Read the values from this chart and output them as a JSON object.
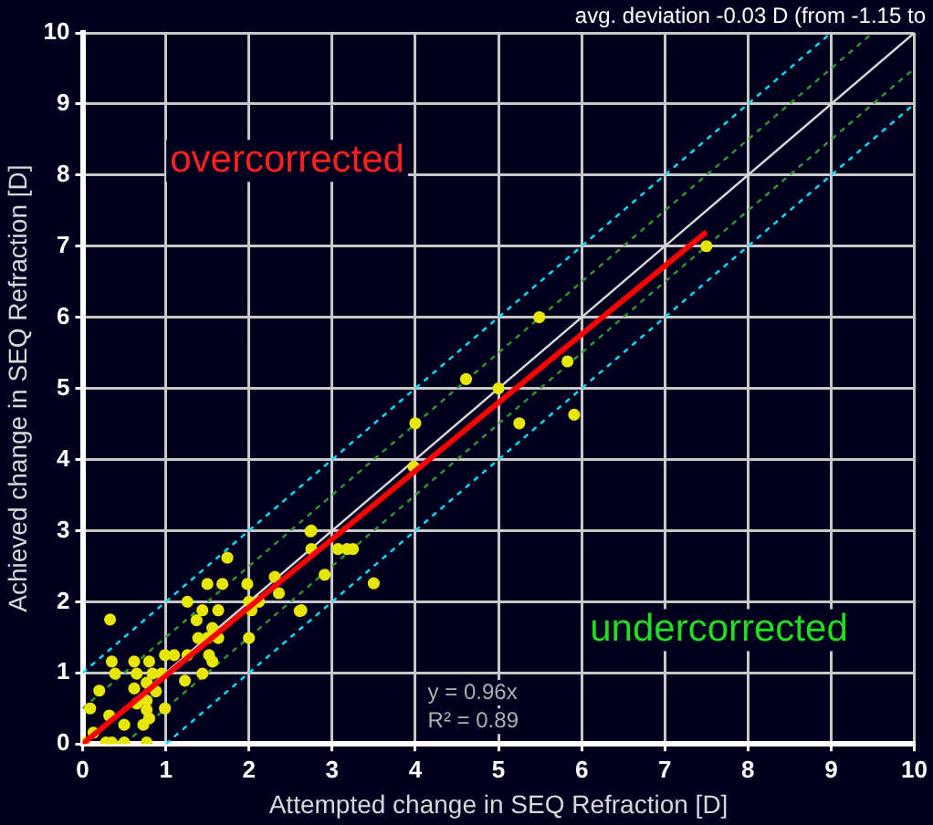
{
  "chart_data": {
    "type": "scatter",
    "xlabel": "Attempted change in SEQ Refraction [D]",
    "ylabel": "Achieved change in SEQ Refraction [D]",
    "annotations": [
      "avg. deviation -0.03 D (from -1.15 to",
      "overcorrected",
      "undercorrected",
      "y = 0.96x",
      "R² = 0.89"
    ],
    "xlim": [
      0,
      10
    ],
    "ylim": [
      0,
      10
    ],
    "xticks": [
      0,
      1,
      2,
      3,
      4,
      5,
      6,
      7,
      8,
      9,
      10
    ],
    "yticks": [
      0,
      1,
      2,
      3,
      4,
      5,
      6,
      7,
      8,
      9,
      10
    ],
    "grid": true,
    "legend": false,
    "series": [
      {
        "type": "line",
        "color": "#d8d8d8",
        "x": [
          0,
          10
        ],
        "values": [
          0,
          10
        ],
        "line_style": "solid"
      },
      {
        "type": "line",
        "color": "#2e9a2e",
        "x": [
          0,
          9.5
        ],
        "values": [
          0.5,
          10
        ],
        "line_style": "dashed"
      },
      {
        "type": "line",
        "color": "#2e9a2e",
        "x": [
          0.5,
          10
        ],
        "values": [
          0,
          9.5
        ],
        "line_style": "dashed"
      },
      {
        "type": "line",
        "color": "#00e5ff",
        "x": [
          0,
          9
        ],
        "values": [
          1,
          10
        ],
        "line_style": "dashed"
      },
      {
        "type": "line",
        "color": "#00e5ff",
        "x": [
          1,
          10
        ],
        "values": [
          0,
          9
        ],
        "line_style": "dashed"
      },
      {
        "marker": "circle",
        "color": "#e6e600",
        "x": [
          7.5,
          5.49,
          5.83,
          5.91,
          4.61,
          5.0,
          5.25,
          4.0,
          3.98,
          2.75,
          2.75,
          3.07,
          3.18,
          3.25,
          2.91,
          3.5,
          2.61,
          2.74,
          1.74,
          0.33,
          1.26,
          1.5,
          1.68,
          1.98,
          2.31,
          2.36,
          1.44,
          1.63,
          2.0,
          2.12,
          2.03,
          2.63,
          1.37,
          1.56,
          1.39,
          1.5,
          1.63,
          1.26,
          1.52,
          0.99,
          1.1,
          1.56,
          1.44,
          2.0,
          0.35,
          0.39,
          0.62,
          0.65,
          0.8,
          0.84,
          0.77,
          0.95,
          1.23,
          0.2,
          0.62,
          0.65,
          0.77,
          0.77,
          0.8,
          0.88,
          0.99,
          0.09,
          0.32,
          0.5,
          0.73,
          0.13,
          0.28,
          0.35,
          0.77,
          0.02,
          0.5
        ],
        "values": [
          7.0,
          6.0,
          5.38,
          4.63,
          5.13,
          5.0,
          4.51,
          4.51,
          3.9,
          3.0,
          2.74,
          2.74,
          2.74,
          2.74,
          2.38,
          2.26,
          1.87,
          2.99,
          2.62,
          1.75,
          2.0,
          2.25,
          2.25,
          2.25,
          2.35,
          2.12,
          1.88,
          1.88,
          2.0,
          2.0,
          1.88,
          1.88,
          1.74,
          1.63,
          1.49,
          1.49,
          1.49,
          1.25,
          1.25,
          1.25,
          1.25,
          1.16,
          0.99,
          1.49,
          1.16,
          0.99,
          1.16,
          0.99,
          1.16,
          0.99,
          0.86,
          0.99,
          0.89,
          0.75,
          0.78,
          0.57,
          0.61,
          0.48,
          0.36,
          0.74,
          0.5,
          0.5,
          0.4,
          0.27,
          0.27,
          0.16,
          0.02,
          0.02,
          0.02,
          0.02,
          0.02
        ]
      },
      {
        "type": "line",
        "color": "#ff0000",
        "x": [
          0,
          7.5
        ],
        "values": [
          0,
          7.2
        ],
        "line_style": "solid"
      }
    ]
  }
}
